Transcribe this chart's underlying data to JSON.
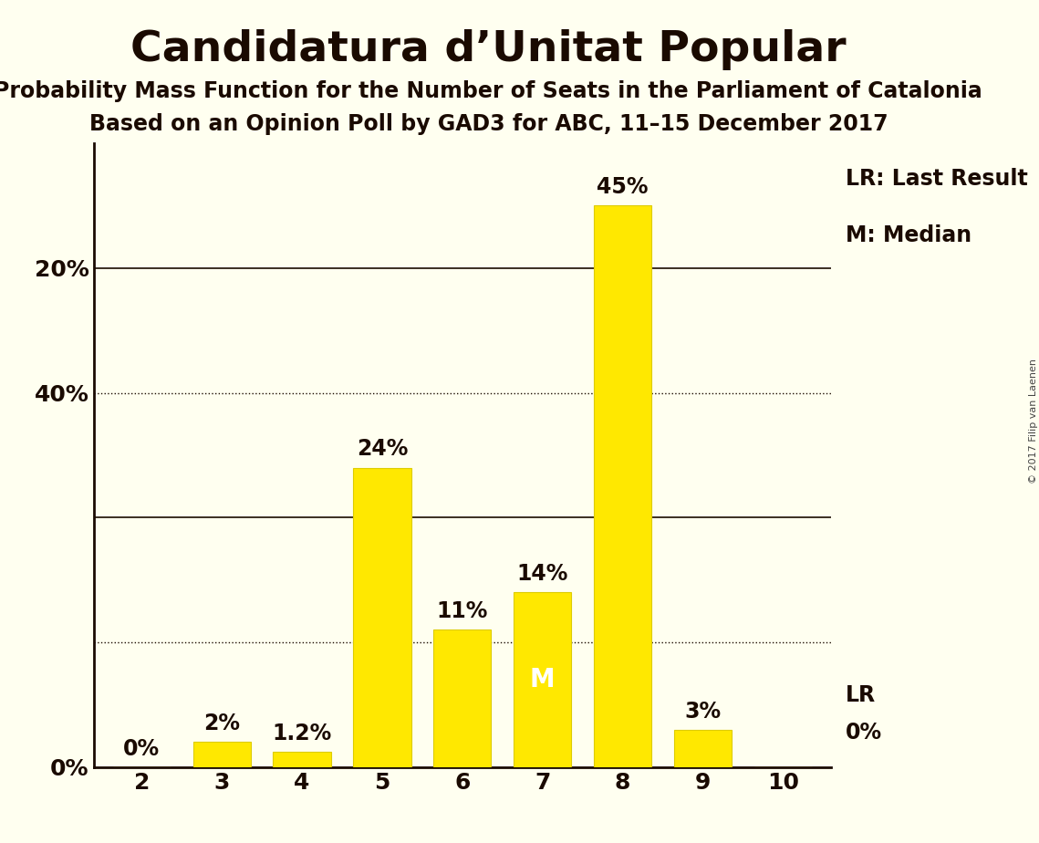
{
  "title": "Candidatura d’Unitat Popular",
  "subtitle1": "Probability Mass Function for the Number of Seats in the Parliament of Catalonia",
  "subtitle2": "Based on an Opinion Poll by GAD3 for ABC, 11–15 December 2017",
  "copyright": "© 2017 Filip van Laenen",
  "categories": [
    2,
    3,
    4,
    5,
    6,
    7,
    8,
    9,
    10
  ],
  "values": [
    0.0,
    2.0,
    1.2,
    24.0,
    11.0,
    14.0,
    45.0,
    3.0,
    0.0
  ],
  "labels": [
    "0%",
    "2%",
    "1.2%",
    "24%",
    "11%",
    "14%",
    "45%",
    "3%",
    "0%"
  ],
  "bar_color": "#FFE800",
  "bar_edge_color": "#DDCC00",
  "background_color": "#FFFFF0",
  "text_color": "#1a0a00",
  "median_bar": 7,
  "median_label": "M",
  "median_label_color": "#FFFFFF",
  "lr_bar": 10,
  "lr_label": "LR",
  "lr_value_label": "0%",
  "ylim": [
    0,
    50
  ],
  "yticks_solid": [
    20,
    40
  ],
  "yticks_dotted": [
    10,
    30
  ],
  "yticklabels_solid": [
    "20%",
    "40%"
  ],
  "y0_label": "0%",
  "legend_text1": "LR: Last Result",
  "legend_text2": "M: Median",
  "title_fontsize": 34,
  "subtitle_fontsize": 17,
  "tick_fontsize": 18,
  "legend_fontsize": 17,
  "bar_label_fontsize": 17,
  "figsize": [
    11.39,
    9.24
  ]
}
